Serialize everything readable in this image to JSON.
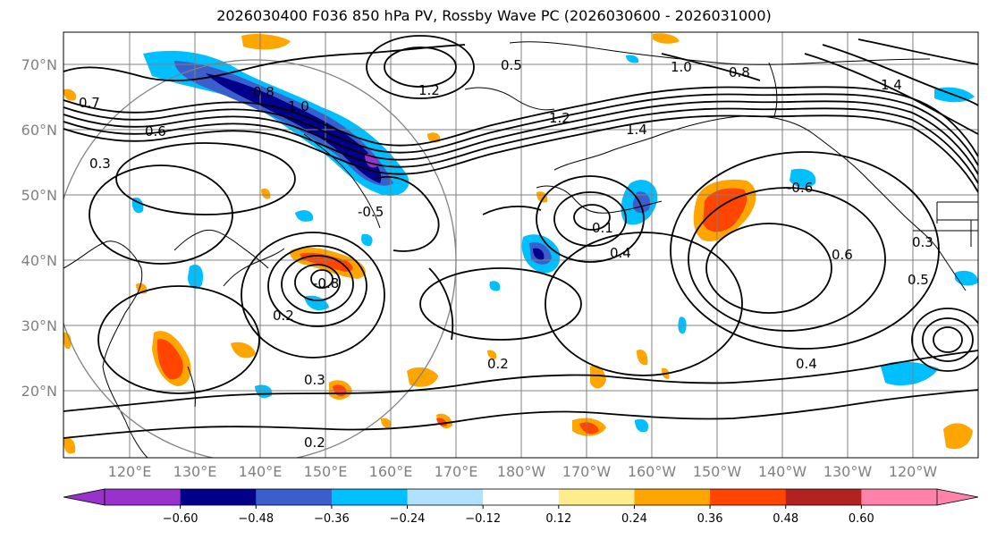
{
  "title": "2026030400 F036 850 hPa PV, Rossby Wave PC (2026030600 - 2026031000)",
  "lat_labels": [
    "70°N",
    "60°N",
    "50°N",
    "40°N",
    "30°N",
    "20°N"
  ],
  "lon_labels": [
    "120°E",
    "130°E",
    "140°E",
    "150°E",
    "160°E",
    "170°E",
    "180°W",
    "170°W",
    "160°W",
    "150°W",
    "140°W",
    "130°W",
    "120°W"
  ],
  "colorbar": {
    "colors": [
      "#9932cc",
      "#00008b",
      "#3a5fcd",
      "#00bfff",
      "#b0e2ff",
      "#ffffff",
      "#ffec8b",
      "#ffa500",
      "#ff4500",
      "#b22222",
      "#ff82ab"
    ],
    "under_color": "#9932cc",
    "over_color": "#ff82ab",
    "tick_labels": [
      "−0.60",
      "−0.48",
      "−0.36",
      "−0.24",
      "−0.12",
      "0.12",
      "0.24",
      "0.36",
      "0.48",
      "0.60"
    ]
  },
  "contour_labels": [
    "0.7",
    "0.6",
    "0.3",
    "0.5",
    "0.8",
    "1.0",
    "0.2",
    "0.1",
    "1.2",
    "1.4",
    "0.4",
    "-0.5",
    "-0.6",
    "-0.8",
    "0.2",
    "0.3",
    "0.4",
    "0.6",
    "0.5",
    "0.8",
    "1.0",
    "1.2",
    "1.4",
    "0.3",
    "0.2"
  ]
}
